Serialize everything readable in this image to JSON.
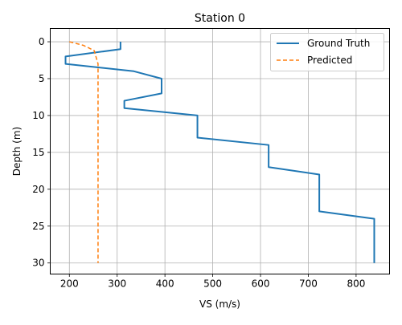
{
  "chart_data": {
    "type": "line",
    "title": "Station 0",
    "xlabel": "VS (m/s)",
    "ylabel": "Depth (m)",
    "xlim": [
      160,
      870
    ],
    "ylim": [
      31.5,
      -1.8
    ],
    "y_inverted": true,
    "x_ticks": [
      200,
      300,
      400,
      500,
      600,
      700,
      800
    ],
    "y_ticks": [
      0,
      5,
      10,
      15,
      20,
      25,
      30
    ],
    "grid": true,
    "legend_position": "upper right",
    "series": [
      {
        "name": "Ground Truth",
        "color": "#1f77b4",
        "style": "solid",
        "points": [
          [
            307,
            0
          ],
          [
            307,
            1
          ],
          [
            192,
            2
          ],
          [
            192,
            3
          ],
          [
            335,
            4
          ],
          [
            393,
            5
          ],
          [
            393,
            7
          ],
          [
            315,
            8
          ],
          [
            315,
            9
          ],
          [
            468,
            10
          ],
          [
            468,
            13
          ],
          [
            617,
            14
          ],
          [
            617,
            17
          ],
          [
            723,
            18
          ],
          [
            723,
            23
          ],
          [
            838,
            24
          ],
          [
            838,
            30
          ]
        ]
      },
      {
        "name": "Predicted",
        "color": "#ff7f0e",
        "style": "dashed",
        "points": [
          [
            200,
            0
          ],
          [
            230,
            0.5
          ],
          [
            252,
            1.2
          ],
          [
            260,
            3
          ],
          [
            260,
            10
          ],
          [
            260,
            20
          ],
          [
            260,
            30
          ]
        ]
      }
    ]
  }
}
